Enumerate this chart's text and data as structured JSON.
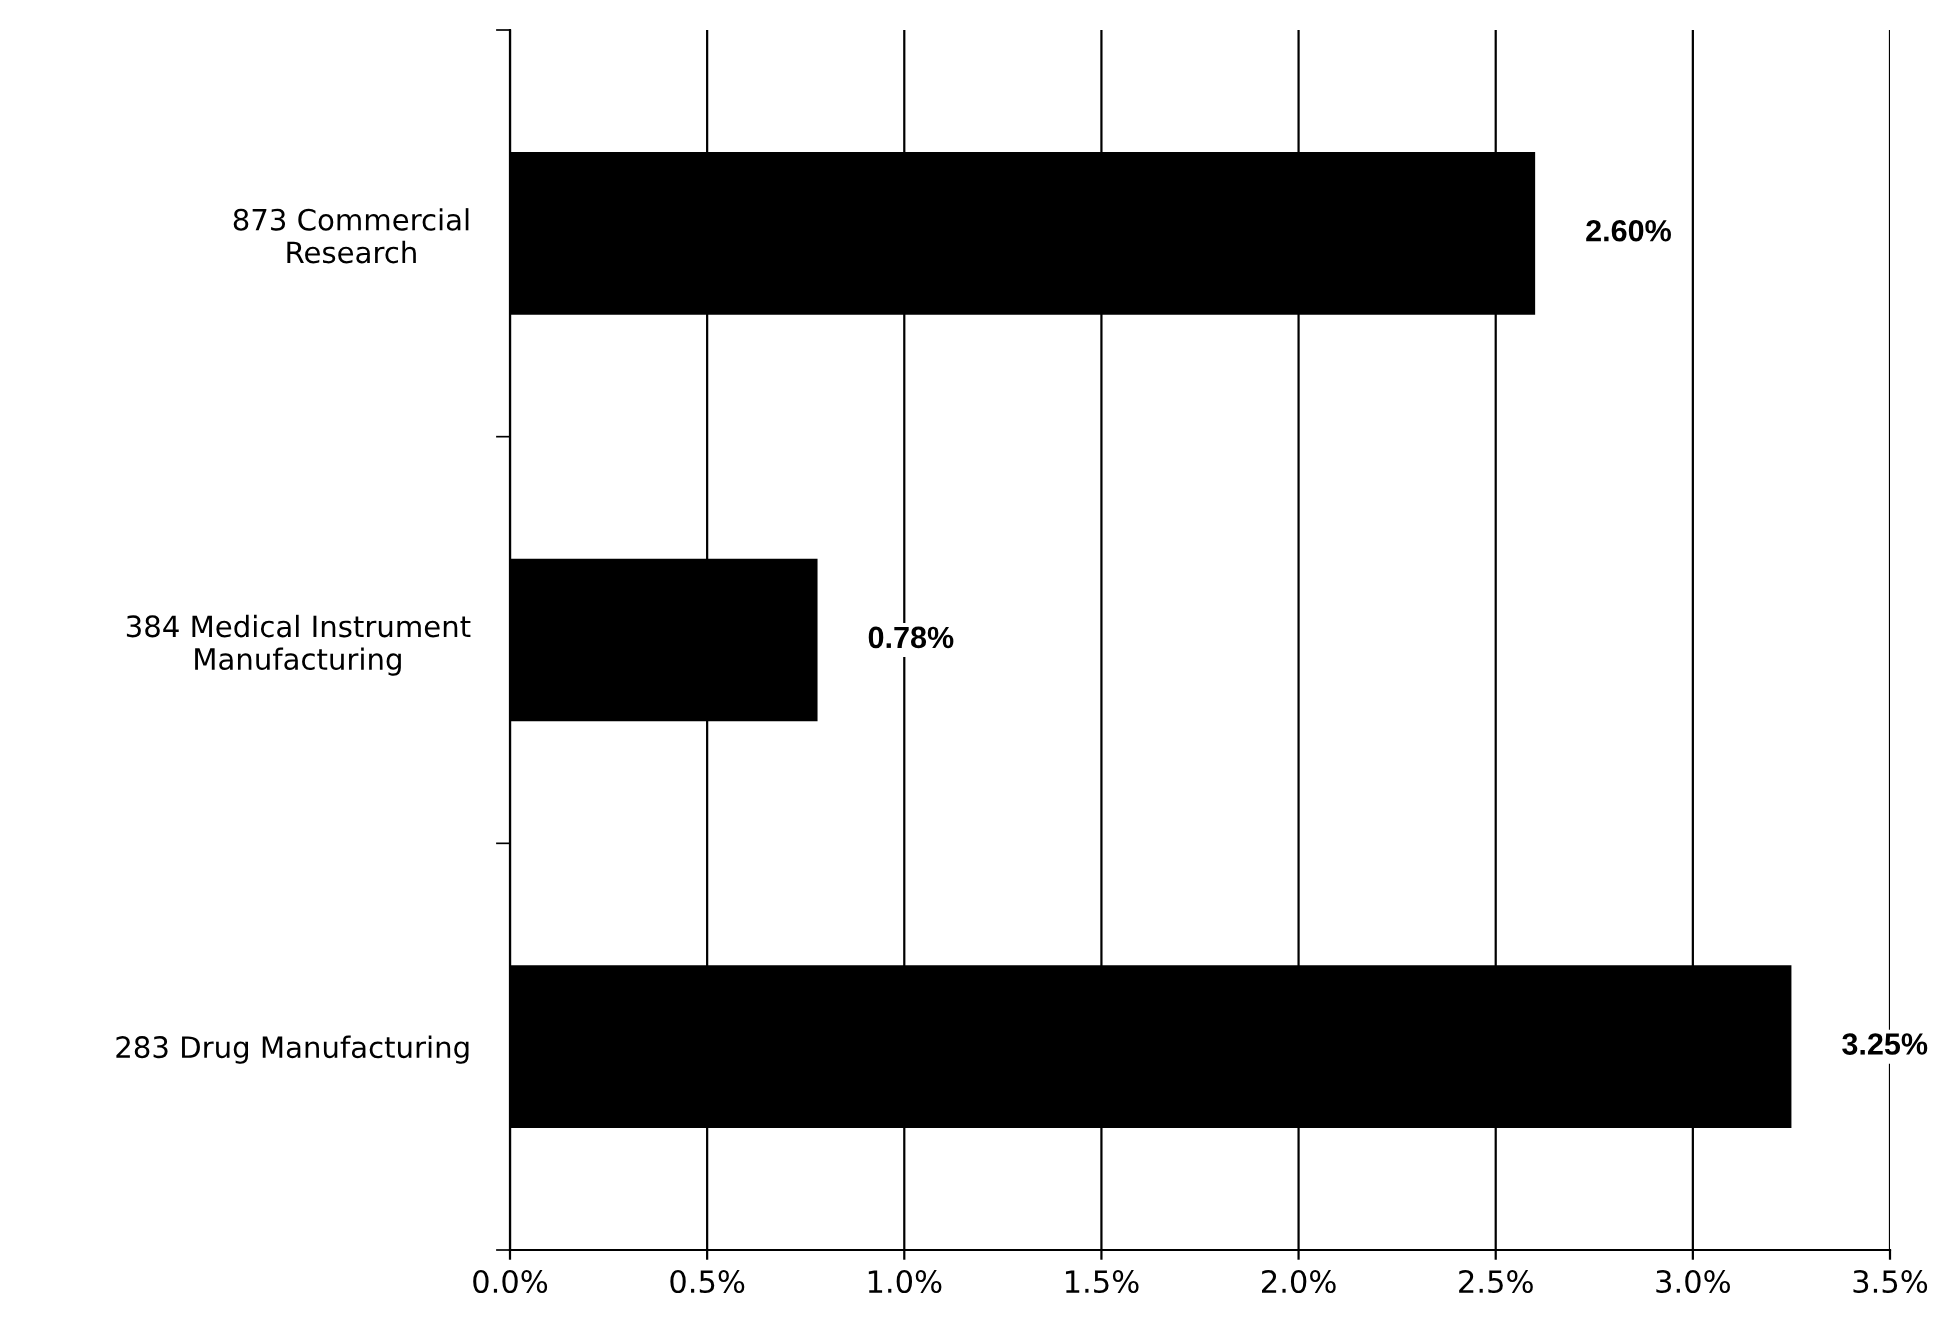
{
  "chart_data": {
    "type": "bar",
    "orientation": "horizontal",
    "categories": [
      "873 Commercial\nResearch",
      "384 Medical Instrument\nManufacturing",
      "283 Drug Manufacturing"
    ],
    "values": [
      2.6,
      0.78,
      3.25
    ],
    "value_labels": [
      "2.60%",
      "0.78%",
      "3.25%"
    ],
    "color": "#000000",
    "xlim": [
      0,
      3.5
    ],
    "xticks": [
      {
        "value": 0,
        "label": "0.0%"
      },
      {
        "value": 0.5,
        "label": "0.5%"
      },
      {
        "value": 1,
        "label": "1.0%"
      },
      {
        "value": 1.5,
        "label": "1.5%"
      },
      {
        "value": 2,
        "label": "2.0%"
      },
      {
        "value": 2.5,
        "label": "2.5%"
      },
      {
        "value": 3,
        "label": "3.0%"
      },
      {
        "value": 3.5,
        "label": "3.5%"
      }
    ],
    "grid": "x",
    "legend": false
  }
}
